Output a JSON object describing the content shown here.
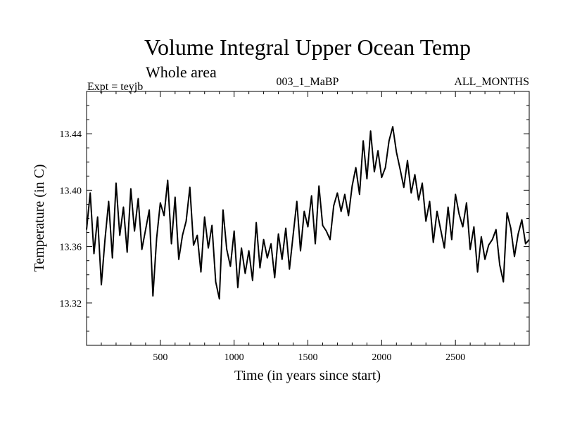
{
  "chart_data": {
    "type": "line",
    "title": "Volume Integral Upper Ocean Temp",
    "subtitle": "Whole area",
    "expt_label": "Expt = teyjb",
    "run_label": "003_1_MaBP",
    "months_label": "ALL_MONTHS",
    "xlabel": "Time (in years since start)",
    "ylabel": "Temperature (in C)",
    "xlim": [
      0,
      3000
    ],
    "ylim": [
      13.29,
      13.47
    ],
    "x_major_ticks": [
      500,
      1000,
      1500,
      2000,
      2500
    ],
    "x_minor_step": 100,
    "y_major_ticks": [
      13.32,
      13.36,
      13.4,
      13.44
    ],
    "y_minor_step": 0.01,
    "y_tick_labels": [
      "13.32",
      "13.36",
      "13.40",
      "13.44"
    ],
    "x_tick_labels": [
      "500",
      "1000",
      "1500",
      "2000",
      "2500"
    ],
    "series": [
      {
        "name": "teyjb",
        "x": [
          0,
          25,
          50,
          75,
          100,
          125,
          150,
          175,
          200,
          225,
          250,
          275,
          300,
          325,
          350,
          375,
          400,
          425,
          450,
          475,
          500,
          525,
          550,
          575,
          600,
          625,
          650,
          675,
          700,
          725,
          750,
          775,
          800,
          825,
          850,
          875,
          900,
          925,
          950,
          975,
          1000,
          1025,
          1050,
          1075,
          1100,
          1125,
          1150,
          1175,
          1200,
          1225,
          1250,
          1275,
          1300,
          1325,
          1350,
          1375,
          1400,
          1425,
          1450,
          1475,
          1500,
          1525,
          1550,
          1575,
          1600,
          1625,
          1650,
          1675,
          1700,
          1725,
          1750,
          1775,
          1800,
          1825,
          1850,
          1875,
          1900,
          1925,
          1950,
          1975,
          2000,
          2025,
          2050,
          2075,
          2100,
          2125,
          2150,
          2175,
          2200,
          2225,
          2250,
          2275,
          2300,
          2325,
          2350,
          2375,
          2400,
          2425,
          2450,
          2475,
          2500,
          2525,
          2550,
          2575,
          2600,
          2625,
          2650,
          2675,
          2700,
          2725,
          2750,
          2775,
          2800,
          2825,
          2850,
          2875,
          2900,
          2925,
          2950,
          2975,
          3000
        ],
        "values": [
          13.372,
          13.398,
          13.355,
          13.381,
          13.333,
          13.365,
          13.392,
          13.352,
          13.405,
          13.368,
          13.388,
          13.356,
          13.401,
          13.371,
          13.394,
          13.358,
          13.372,
          13.386,
          13.325,
          13.366,
          13.391,
          13.382,
          13.407,
          13.362,
          13.395,
          13.351,
          13.368,
          13.378,
          13.402,
          13.361,
          13.368,
          13.342,
          13.381,
          13.359,
          13.375,
          13.335,
          13.323,
          13.386,
          13.358,
          13.346,
          13.371,
          13.331,
          13.359,
          13.341,
          13.357,
          13.336,
          13.377,
          13.345,
          13.365,
          13.352,
          13.362,
          13.338,
          13.369,
          13.351,
          13.373,
          13.344,
          13.368,
          13.392,
          13.357,
          13.385,
          13.374,
          13.396,
          13.362,
          13.403,
          13.375,
          13.371,
          13.365,
          13.389,
          13.398,
          13.385,
          13.397,
          13.382,
          13.403,
          13.416,
          13.397,
          13.435,
          13.408,
          13.442,
          13.413,
          13.428,
          13.409,
          13.416,
          13.435,
          13.445,
          13.427,
          13.415,
          13.402,
          13.421,
          13.398,
          13.411,
          13.393,
          13.405,
          13.378,
          13.392,
          13.363,
          13.385,
          13.372,
          13.359,
          13.388,
          13.365,
          13.397,
          13.383,
          13.374,
          13.391,
          13.358,
          13.374,
          13.342,
          13.367,
          13.351,
          13.361,
          13.365,
          13.372,
          13.347,
          13.335,
          13.384,
          13.373,
          13.353,
          13.369,
          13.379,
          13.362,
          13.365
        ]
      }
    ],
    "line_color": "#000000"
  }
}
